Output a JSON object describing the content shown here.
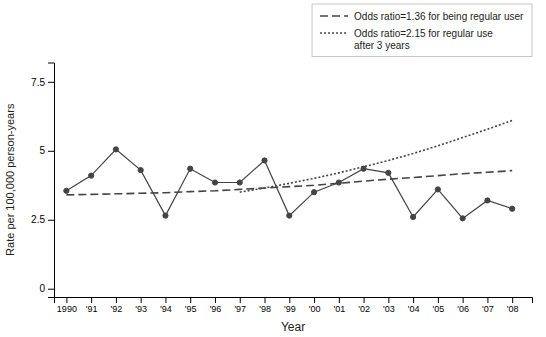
{
  "chart_data": {
    "type": "line",
    "x_label": "Year",
    "y_label": "Rate per 100,000 person-years",
    "x": [
      1990,
      1991,
      1992,
      1993,
      1994,
      1995,
      1996,
      1997,
      1998,
      1999,
      2000,
      2001,
      2002,
      2003,
      2004,
      2005,
      2006,
      2007,
      2008
    ],
    "series": [
      {
        "color": "#444444",
        "line_style": "solid",
        "marker": "circle",
        "values": [
          3.55,
          4.1,
          5.05,
          4.3,
          2.65,
          4.35,
          3.85,
          3.85,
          4.65,
          2.65,
          3.5,
          3.85,
          4.35,
          4.2,
          2.6,
          3.6,
          2.55,
          3.2,
          2.9
        ]
      },
      {
        "name": "Odds ratio=1.36 for being regular user",
        "color": "#444444",
        "line_style": "dashed",
        "values": [
          3.4,
          3.42,
          3.44,
          3.46,
          3.48,
          3.52,
          3.55,
          3.6,
          3.65,
          3.7,
          3.75,
          3.82,
          3.9,
          3.97,
          4.03,
          4.1,
          4.17,
          4.22,
          4.28
        ]
      },
      {
        "name": "Odds ratio=2.15 for regular use\nafter 3 years",
        "color": "#444444",
        "line_style": "dotted",
        "values": [
          null,
          null,
          null,
          null,
          null,
          null,
          null,
          3.5,
          3.65,
          3.82,
          4.0,
          4.2,
          4.42,
          4.65,
          4.9,
          5.18,
          5.48,
          5.78,
          6.1
        ]
      }
    ],
    "xlim": [
      1989.5,
      2008.8
    ],
    "xticks": [
      1990,
      {
        "value": 1991,
        "label": "'91"
      },
      {
        "value": 1992,
        "label": "'92"
      },
      {
        "value": 1993,
        "label": "'93"
      },
      {
        "value": 1994,
        "label": "'94"
      },
      {
        "value": 1995,
        "label": "'95"
      },
      {
        "value": 1996,
        "label": "'96"
      },
      {
        "value": 1997,
        "label": "'97"
      },
      {
        "value": 1998,
        "label": "'98"
      },
      {
        "value": 1999,
        "label": "'99"
      },
      {
        "value": 2000,
        "label": "'00"
      },
      {
        "value": 2001,
        "label": "'01"
      },
      {
        "value": 2002,
        "label": "'02"
      },
      {
        "value": 2003,
        "label": "'03"
      },
      {
        "value": 2004,
        "label": "'04"
      },
      {
        "value": 2005,
        "label": "'05"
      },
      {
        "value": 2006,
        "label": "'06"
      },
      {
        "value": 2007,
        "label": "'07"
      },
      {
        "value": 2008,
        "label": "'08"
      }
    ],
    "ylim": [
      -0.3,
      8.2
    ],
    "yticks": [
      0,
      2.5,
      5.0,
      7.5
    ],
    "grid": false,
    "legend": "upper right"
  }
}
